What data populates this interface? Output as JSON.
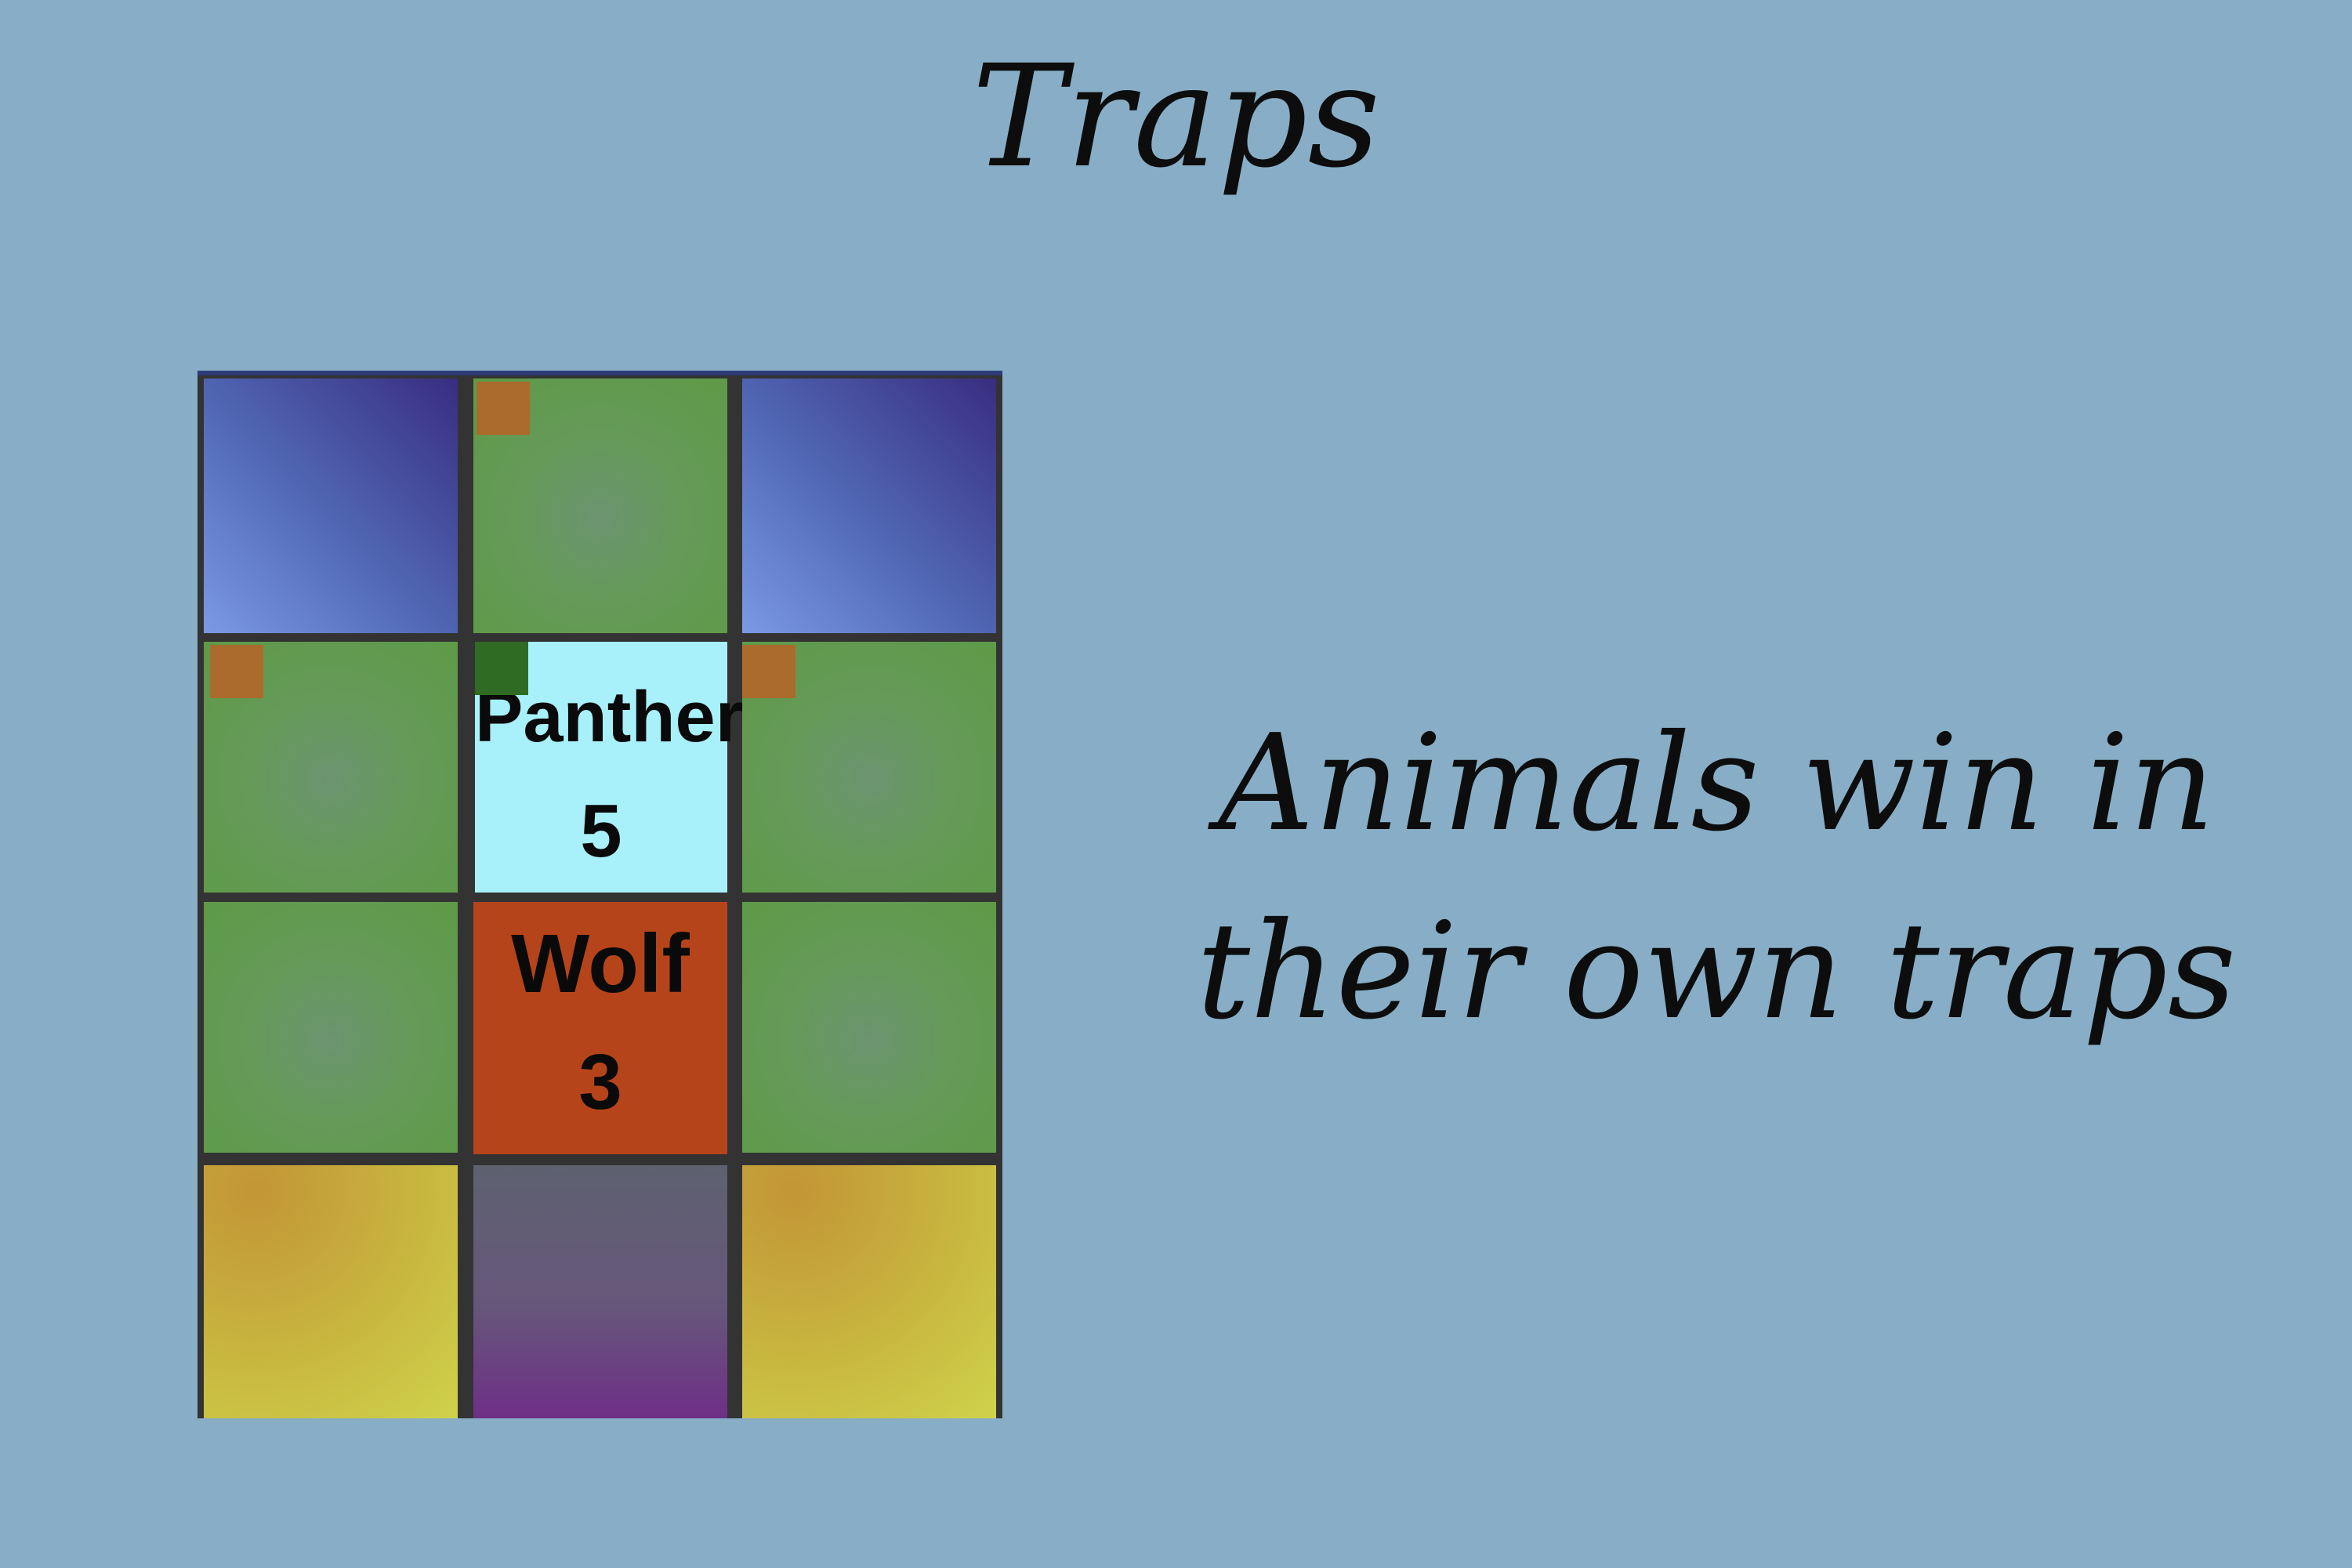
{
  "title": "Traps",
  "caption": {
    "line1": "Animals win in",
    "line2": "their own traps"
  },
  "board": {
    "pieces": {
      "panther": {
        "name": "Panther",
        "rank": "5"
      },
      "wolf": {
        "name": "Wolf",
        "rank": "3"
      }
    }
  },
  "colors": {
    "background": "#87aec6",
    "grass": "#5e9a47",
    "water": "#4a5fae",
    "sand": "#c8b63f",
    "den": "#66577a",
    "trap_marker": "#aa6b2d",
    "trap_marker_own": "#2f6b22",
    "panther_tile": "#a8f0fa",
    "wolf_tile": "#b5441a"
  }
}
